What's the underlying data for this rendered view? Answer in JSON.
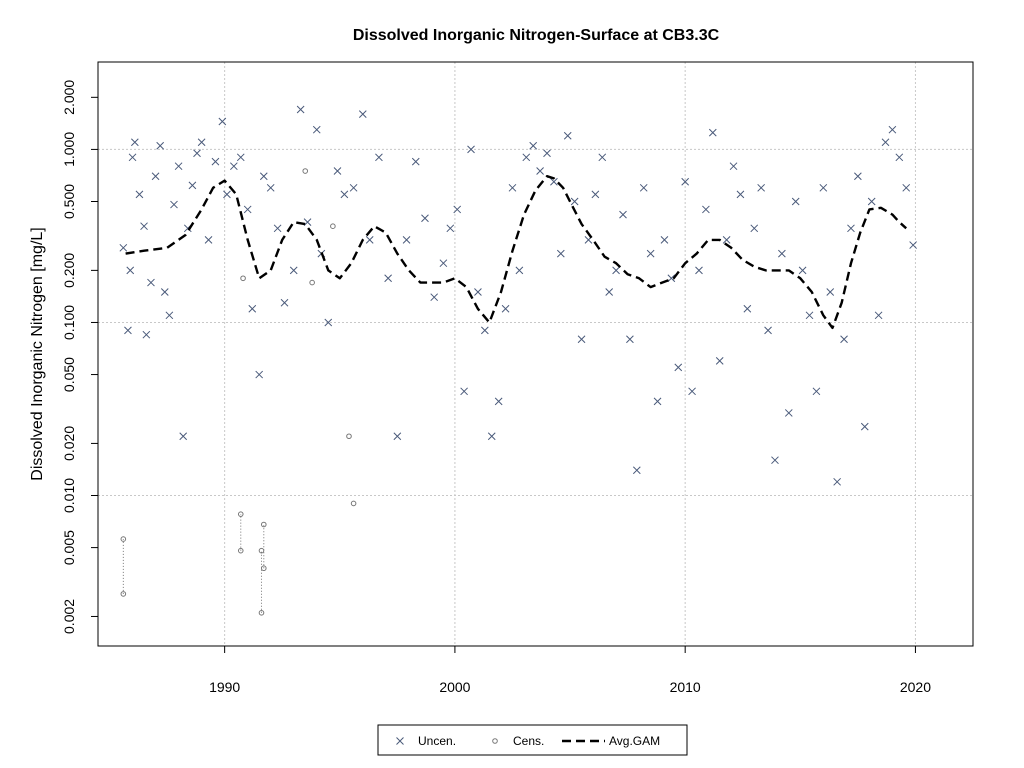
{
  "chart_data": {
    "type": "scatter",
    "title": "Dissolved Inorganic Nitrogen-Surface at CB3.3C",
    "xlabel": "",
    "ylabel": "Dissolved Inorganic Nitrogen [mg/L]",
    "y_scale": "log",
    "xlim": [
      1984.5,
      2022.5
    ],
    "ylim": [
      0.00135,
      3.2
    ],
    "x_ticks": [
      1990,
      2000,
      2010,
      2020
    ],
    "x_tick_labels": [
      "1990",
      "2000",
      "2010",
      "2020"
    ],
    "y_ticks": [
      0.002,
      0.005,
      0.01,
      0.02,
      0.05,
      0.1,
      0.2,
      0.5,
      1,
      2
    ],
    "y_tick_labels": [
      "0.002",
      "0.005",
      "0.010",
      "0.020",
      "0.050",
      "0.100",
      "0.200",
      "0.500",
      "1.000",
      "2.000"
    ],
    "grid": true,
    "legend_position": "bottom-center",
    "colors": {
      "uncensored": "#4a5a7a",
      "censored": "#777777",
      "gam": "#000000",
      "grid": "#c8c8c8"
    },
    "series": [
      {
        "name": "Uncen.",
        "marker": "x",
        "x": [
          1985.6,
          1985.8,
          1985.9,
          1986.0,
          1986.1,
          1986.3,
          1986.5,
          1986.6,
          1986.8,
          1987.0,
          1987.2,
          1987.4,
          1987.6,
          1987.8,
          1988.0,
          1988.2,
          1988.4,
          1988.6,
          1988.8,
          1989.0,
          1989.3,
          1989.6,
          1989.9,
          1990.1,
          1990.4,
          1990.7,
          1991.0,
          1991.2,
          1991.5,
          1991.7,
          1992.0,
          1992.3,
          1992.6,
          1993.0,
          1993.3,
          1993.6,
          1994.0,
          1994.2,
          1994.5,
          1994.9,
          1995.2,
          1995.6,
          1996.0,
          1996.3,
          1996.7,
          1997.1,
          1997.5,
          1997.9,
          1998.3,
          1998.7,
          1999.1,
          1999.5,
          1999.8,
          2000.1,
          2000.4,
          2000.7,
          2001.0,
          2001.3,
          2001.6,
          2001.9,
          2002.2,
          2002.5,
          2002.8,
          2003.1,
          2003.4,
          2003.7,
          2004.0,
          2004.3,
          2004.6,
          2004.9,
          2005.2,
          2005.5,
          2005.8,
          2006.1,
          2006.4,
          2006.7,
          2007.0,
          2007.3,
          2007.6,
          2007.9,
          2008.2,
          2008.5,
          2008.8,
          2009.1,
          2009.4,
          2009.7,
          2010.0,
          2010.3,
          2010.6,
          2010.9,
          2011.2,
          2011.5,
          2011.8,
          2012.1,
          2012.4,
          2012.7,
          2013.0,
          2013.3,
          2013.6,
          2013.9,
          2014.2,
          2014.5,
          2014.8,
          2015.1,
          2015.4,
          2015.7,
          2016.0,
          2016.3,
          2016.6,
          2016.9,
          2017.2,
          2017.5,
          2017.8,
          2018.1,
          2018.4,
          2018.7,
          2019.0,
          2019.3,
          2019.6,
          2019.9
        ],
        "y": [
          0.27,
          0.09,
          0.2,
          0.9,
          1.1,
          0.55,
          0.36,
          0.085,
          0.17,
          0.7,
          1.05,
          0.15,
          0.11,
          0.48,
          0.8,
          0.022,
          0.35,
          0.62,
          0.95,
          1.1,
          0.3,
          0.85,
          1.45,
          0.55,
          0.8,
          0.9,
          0.45,
          0.12,
          0.05,
          0.7,
          0.6,
          0.35,
          0.13,
          0.2,
          1.7,
          0.38,
          1.3,
          0.25,
          0.1,
          0.75,
          0.55,
          0.6,
          1.6,
          0.3,
          0.9,
          0.18,
          0.022,
          0.3,
          0.85,
          0.4,
          0.14,
          0.22,
          0.35,
          0.45,
          0.04,
          1.0,
          0.15,
          0.09,
          0.022,
          0.035,
          0.12,
          0.6,
          0.2,
          0.9,
          1.05,
          0.75,
          0.95,
          0.65,
          0.25,
          1.2,
          0.5,
          0.08,
          0.3,
          0.55,
          0.9,
          0.15,
          0.2,
          0.42,
          0.08,
          0.014,
          0.6,
          0.25,
          0.035,
          0.3,
          0.18,
          0.055,
          0.65,
          0.04,
          0.2,
          0.45,
          1.25,
          0.06,
          0.3,
          0.8,
          0.55,
          0.12,
          0.35,
          0.6,
          0.09,
          0.016,
          0.25,
          0.03,
          0.5,
          0.2,
          0.11,
          0.04,
          0.6,
          0.15,
          0.012,
          0.08,
          0.35,
          0.7,
          0.025,
          0.5,
          0.11,
          1.1,
          1.3,
          0.9,
          0.6,
          0.28
        ]
      },
      {
        "name": "Cens.",
        "marker": "o",
        "x": [
          1985.6,
          1990.7,
          1990.8,
          1991.6,
          1991.7,
          1993.5,
          1993.8,
          1994.7,
          1995.4,
          1995.6
        ],
        "y": [
          0.0056,
          0.0078,
          0.18,
          0.0048,
          0.0068,
          0.75,
          0.17,
          0.36,
          0.022,
          0.009
        ],
        "interval_low": [
          0.0027,
          0.0048,
          null,
          0.0021,
          0.0038,
          null,
          null,
          null,
          null,
          null
        ],
        "interval_high": [
          0.0056,
          0.0078,
          null,
          0.0048,
          0.0068,
          null,
          null,
          null,
          null,
          null
        ]
      },
      {
        "name": "Avg.GAM",
        "marker": "dashed-line",
        "x": [
          1985.7,
          1986.5,
          1987.5,
          1988.3,
          1989.0,
          1989.5,
          1990.0,
          1990.5,
          1991.0,
          1991.5,
          1992.0,
          1992.5,
          1993.0,
          1993.5,
          1994.0,
          1994.5,
          1995.0,
          1995.5,
          1996.0,
          1996.5,
          1997.0,
          1997.5,
          1998.0,
          1998.5,
          1999.0,
          1999.5,
          2000.0,
          2000.5,
          2001.0,
          2001.5,
          2002.0,
          2002.5,
          2003.0,
          2003.5,
          2004.0,
          2004.3,
          2004.7,
          2005.0,
          2005.5,
          2006.0,
          2006.5,
          2007.0,
          2007.5,
          2008.0,
          2008.5,
          2009.0,
          2009.5,
          2010.0,
          2010.5,
          2011.0,
          2011.5,
          2012.0,
          2012.5,
          2013.0,
          2013.5,
          2014.0,
          2014.5,
          2015.0,
          2015.5,
          2016.0,
          2016.4,
          2016.8,
          2017.2,
          2017.6,
          2018.0,
          2018.5,
          2019.0,
          2019.3,
          2019.6
        ],
        "y": [
          0.25,
          0.26,
          0.27,
          0.32,
          0.45,
          0.6,
          0.66,
          0.55,
          0.3,
          0.18,
          0.2,
          0.3,
          0.38,
          0.37,
          0.3,
          0.2,
          0.18,
          0.22,
          0.3,
          0.36,
          0.33,
          0.25,
          0.2,
          0.17,
          0.17,
          0.17,
          0.18,
          0.16,
          0.12,
          0.1,
          0.15,
          0.26,
          0.42,
          0.58,
          0.7,
          0.68,
          0.6,
          0.5,
          0.37,
          0.3,
          0.24,
          0.22,
          0.19,
          0.18,
          0.16,
          0.17,
          0.18,
          0.22,
          0.25,
          0.3,
          0.3,
          0.27,
          0.23,
          0.21,
          0.2,
          0.2,
          0.2,
          0.18,
          0.15,
          0.11,
          0.093,
          0.13,
          0.22,
          0.33,
          0.45,
          0.46,
          0.42,
          0.38,
          0.35
        ]
      }
    ],
    "legend": [
      {
        "label": "Uncen.",
        "marker": "x"
      },
      {
        "label": "Cens.",
        "marker": "o"
      },
      {
        "label": "Avg.GAM",
        "marker": "dashed-line"
      }
    ]
  }
}
